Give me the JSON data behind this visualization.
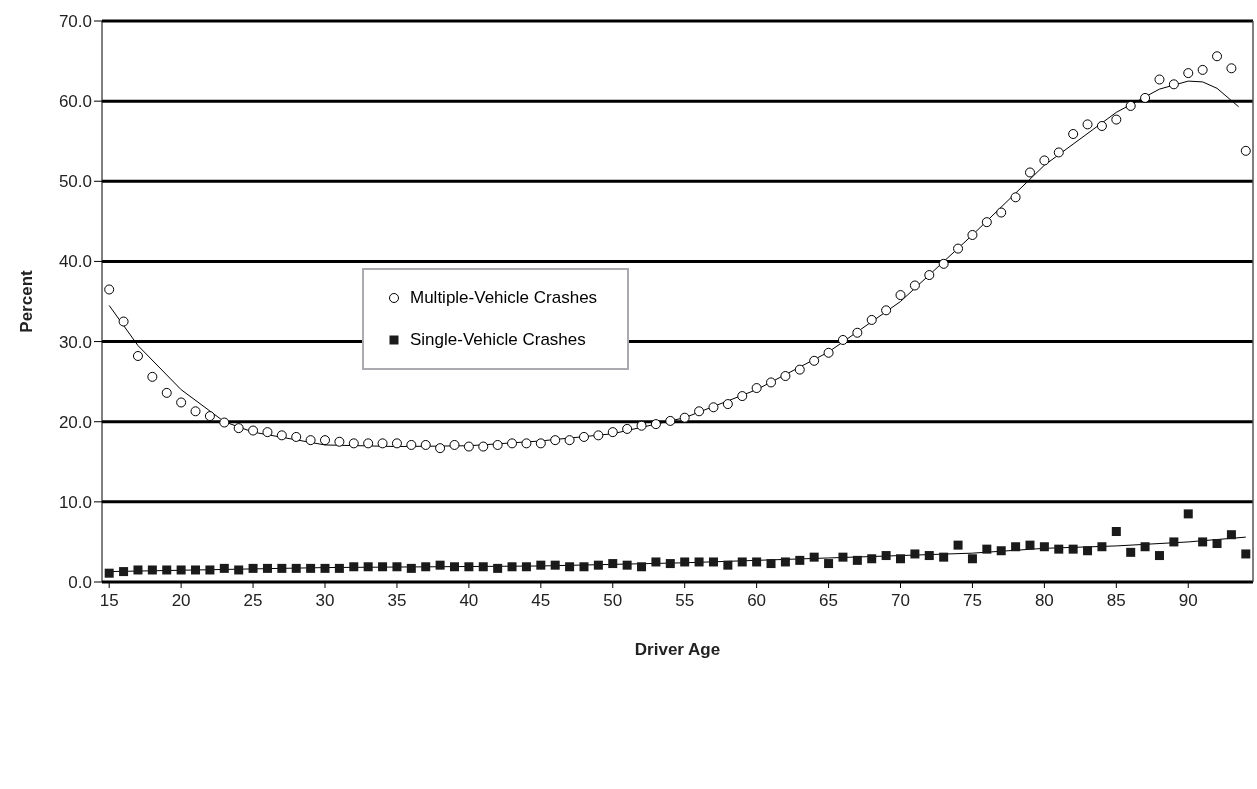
{
  "chart_data": {
    "type": "scatter",
    "xlabel": "Driver Age",
    "ylabel": "Percent",
    "x": [
      15,
      16,
      17,
      18,
      19,
      20,
      21,
      22,
      23,
      24,
      25,
      26,
      27,
      28,
      29,
      30,
      31,
      32,
      33,
      34,
      35,
      36,
      37,
      38,
      39,
      40,
      41,
      42,
      43,
      44,
      45,
      46,
      47,
      48,
      49,
      50,
      51,
      52,
      53,
      54,
      55,
      56,
      57,
      58,
      59,
      60,
      61,
      62,
      63,
      64,
      65,
      66,
      67,
      68,
      69,
      70,
      71,
      72,
      73,
      74,
      75,
      76,
      77,
      78,
      79,
      80,
      81,
      82,
      83,
      84,
      85,
      86,
      87,
      88,
      89,
      90,
      91,
      92,
      93,
      94
    ],
    "series": [
      {
        "name": "Multiple-Vehicle Crashes",
        "color": "#000000",
        "marker": "circle",
        "values": [
          36.5,
          32.5,
          28.2,
          25.6,
          23.6,
          22.4,
          21.3,
          20.7,
          19.9,
          19.2,
          18.9,
          18.7,
          18.3,
          18.1,
          17.7,
          17.7,
          17.5,
          17.3,
          17.3,
          17.3,
          17.3,
          17.1,
          17.1,
          16.7,
          17.1,
          16.9,
          16.9,
          17.1,
          17.3,
          17.3,
          17.3,
          17.7,
          17.7,
          18.1,
          18.3,
          18.7,
          19.1,
          19.5,
          19.7,
          20.1,
          20.5,
          21.3,
          21.8,
          22.2,
          23.2,
          24.2,
          24.9,
          25.7,
          26.5,
          27.6,
          28.6,
          30.2,
          31.1,
          32.7,
          33.9,
          35.8,
          37.0,
          38.3,
          39.7,
          41.6,
          43.3,
          44.9,
          46.1,
          48.0,
          51.1,
          52.6,
          53.6,
          55.9,
          57.1,
          56.9,
          57.7,
          59.4,
          60.4,
          62.7,
          62.1,
          63.5,
          63.9,
          65.6,
          64.1,
          53.8
        ]
      },
      {
        "name": "Single-Vehicle Crashes",
        "color": "#1a1a1a",
        "marker": "square",
        "values": [
          1.1,
          1.3,
          1.5,
          1.5,
          1.5,
          1.5,
          1.5,
          1.5,
          1.7,
          1.5,
          1.7,
          1.7,
          1.7,
          1.7,
          1.7,
          1.7,
          1.7,
          1.9,
          1.9,
          1.9,
          1.9,
          1.7,
          1.9,
          2.1,
          1.9,
          1.9,
          1.9,
          1.7,
          1.9,
          1.9,
          2.1,
          2.1,
          1.9,
          1.9,
          2.1,
          2.3,
          2.1,
          1.9,
          2.5,
          2.3,
          2.5,
          2.5,
          2.5,
          2.1,
          2.5,
          2.5,
          2.3,
          2.5,
          2.7,
          3.1,
          2.3,
          3.1,
          2.7,
          2.9,
          3.3,
          2.9,
          3.5,
          3.3,
          3.1,
          4.6,
          2.9,
          4.1,
          3.9,
          4.4,
          4.6,
          4.4,
          4.1,
          4.1,
          3.9,
          4.4,
          6.3,
          3.7,
          4.4,
          3.3,
          5.0,
          8.5,
          5.0,
          4.8,
          5.9,
          3.5
        ]
      },
      {
        "type": "line",
        "color": "#000000",
        "marker": "none",
        "x": [
          15,
          17,
          20,
          23,
          25,
          30,
          35,
          40,
          45,
          50,
          55,
          60,
          65,
          70,
          75,
          80,
          85,
          88,
          90,
          91,
          92,
          93.5
        ],
        "values": [
          34.5,
          29.5,
          24.0,
          20.0,
          18.7,
          17.1,
          16.9,
          17.0,
          17.6,
          18.5,
          20.5,
          24.0,
          28.7,
          35.0,
          43.3,
          52.0,
          58.6,
          61.5,
          62.5,
          62.4,
          61.6,
          59.3
        ]
      },
      {
        "type": "line",
        "color": "#000000",
        "marker": "none",
        "x": [
          15,
          30,
          45,
          55,
          65,
          75,
          80,
          85,
          90,
          94
        ],
        "values": [
          1.3,
          1.8,
          2.0,
          2.4,
          3.0,
          3.6,
          4.2,
          4.5,
          5.0,
          5.6
        ]
      }
    ],
    "xlim": [
      14.5,
      94.5
    ],
    "xticks": [
      15,
      20,
      25,
      30,
      35,
      40,
      45,
      50,
      55,
      60,
      65,
      70,
      75,
      80,
      85,
      90
    ],
    "ylim": [
      0,
      70
    ],
    "yticks": [
      {
        "value": 0,
        "label": "0.0"
      },
      {
        "value": 10,
        "label": "10.0"
      },
      {
        "value": 20,
        "label": "20.0"
      },
      {
        "value": 30,
        "label": "30.0"
      },
      {
        "value": 40,
        "label": "40.0"
      },
      {
        "value": 50,
        "label": "50.0"
      },
      {
        "value": 60,
        "label": "60.0"
      },
      {
        "value": 70,
        "label": "70.0"
      }
    ],
    "grid": "y",
    "legend": "left"
  }
}
